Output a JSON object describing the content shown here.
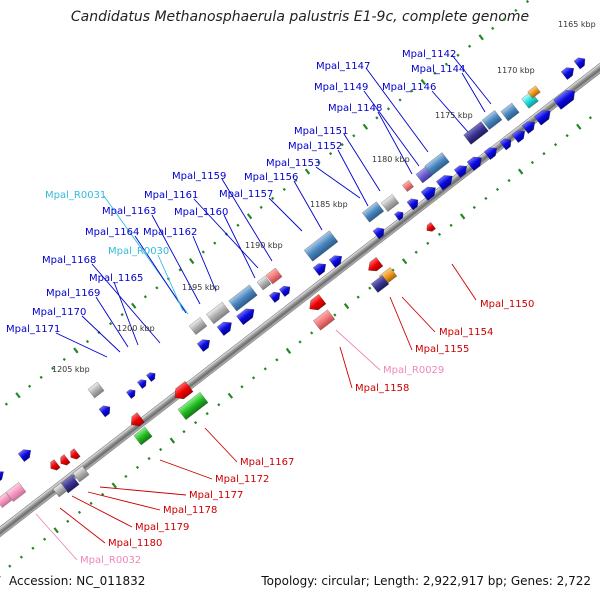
{
  "title": "Candidatus Methanosphaerula palustris E1-9c, complete genome",
  "footer": {
    "accession": "Accession: NC_011832",
    "summary": "Topology: circular; Length: 2,922,917 bp; Genes: 2,722"
  },
  "colors": {
    "forward_label": "#0000cc",
    "reverse_label": "#cc0000",
    "forward_rna_label": "#33bbdd",
    "reverse_rna_label": "#ee88bb",
    "backbone": "#888888",
    "tick": "#228822"
  },
  "ruler": [
    {
      "label": "1165 kbp"
    },
    {
      "label": "1170 kbp"
    },
    {
      "label": "1175 kbp"
    },
    {
      "label": "1180 kbp"
    },
    {
      "label": "1185 kbp"
    },
    {
      "label": "1190 kbp"
    },
    {
      "label": "1195 kbp"
    },
    {
      "label": "1200 kbp"
    },
    {
      "label": "1205 kbp"
    }
  ],
  "forward_labels": [
    {
      "text": "Mpal_1142",
      "color": "#0000cc"
    },
    {
      "text": "Mpal_1144",
      "color": "#0000cc"
    },
    {
      "text": "Mpal_1147",
      "color": "#0000cc"
    },
    {
      "text": "Mpal_1146",
      "color": "#0000cc"
    },
    {
      "text": "Mpal_1149",
      "color": "#0000cc"
    },
    {
      "text": "Mpal_1148",
      "color": "#0000cc"
    },
    {
      "text": "Mpal_1151",
      "color": "#0000cc"
    },
    {
      "text": "Mpal_1152",
      "color": "#0000cc"
    },
    {
      "text": "Mpal_1153",
      "color": "#0000cc"
    },
    {
      "text": "Mpal_1159",
      "color": "#0000cc"
    },
    {
      "text": "Mpal_1156",
      "color": "#0000cc"
    },
    {
      "text": "Mpal_1157",
      "color": "#0000cc"
    },
    {
      "text": "Mpal_R0031",
      "color": "#33bbdd"
    },
    {
      "text": "Mpal_1161",
      "color": "#0000cc"
    },
    {
      "text": "Mpal_1163",
      "color": "#0000cc"
    },
    {
      "text": "Mpal_1160",
      "color": "#0000cc"
    },
    {
      "text": "Mpal_1164",
      "color": "#0000cc"
    },
    {
      "text": "Mpal_1162",
      "color": "#0000cc"
    },
    {
      "text": "Mpal_R0030",
      "color": "#33bbdd"
    },
    {
      "text": "Mpal_1168",
      "color": "#0000cc"
    },
    {
      "text": "Mpal_1165",
      "color": "#0000cc"
    },
    {
      "text": "Mpal_1169",
      "color": "#0000cc"
    },
    {
      "text": "Mpal_1170",
      "color": "#0000cc"
    },
    {
      "text": "Mpal_1171",
      "color": "#0000cc"
    }
  ],
  "reverse_labels": [
    {
      "text": "Mpal_1150",
      "color": "#cc0000"
    },
    {
      "text": "Mpal_1154",
      "color": "#cc0000"
    },
    {
      "text": "Mpal_1155",
      "color": "#cc0000"
    },
    {
      "text": "Mpal_R0029",
      "color": "#ee88bb"
    },
    {
      "text": "Mpal_1158",
      "color": "#cc0000"
    },
    {
      "text": "Mpal_1167",
      "color": "#cc0000"
    },
    {
      "text": "Mpal_1172",
      "color": "#cc0000"
    },
    {
      "text": "Mpal_1177",
      "color": "#cc0000"
    },
    {
      "text": "Mpal_1178",
      "color": "#cc0000"
    },
    {
      "text": "Mpal_1179",
      "color": "#cc0000"
    },
    {
      "text": "Mpal_1180",
      "color": "#cc0000"
    },
    {
      "text": "Mpal_R0032",
      "color": "#ee88bb"
    }
  ]
}
